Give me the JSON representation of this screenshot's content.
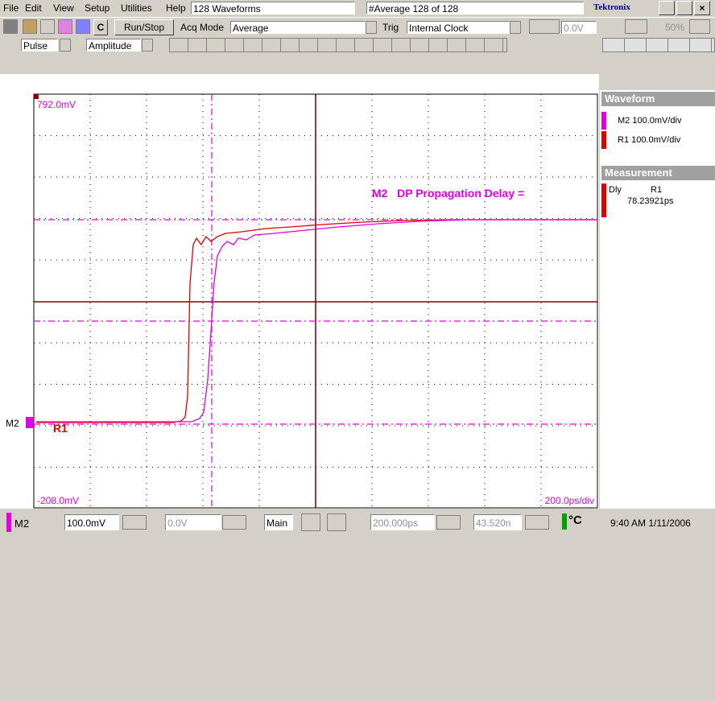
{
  "menu": [
    "File",
    "Edit",
    "View",
    "Setup",
    "Utilities",
    "Help"
  ],
  "title_fields": {
    "waveforms": "128 Waveforms",
    "average": "#Average 128 of 128",
    "brand": "Tektronix"
  },
  "toolbar": {
    "c": "C",
    "run_stop": "Run/Stop",
    "acq_mode_label": "Acq Mode",
    "acq_mode": "Average",
    "trig_label": "Trig",
    "trig": "Internal Clock",
    "trig_level": "0.0V",
    "percent": "50%"
  },
  "toolbar2": {
    "measure_type": "Pulse",
    "measure": "Amplitude"
  },
  "plot": {
    "top_label": "792.0mV",
    "bottom_label": "-208.0mV",
    "timebase": "200.0ps/div",
    "annotation": "M2   DP Propagation Delay =",
    "marker_m2": "M2",
    "marker_r1": "R1"
  },
  "panel": {
    "waveform_header": "Waveform",
    "waveforms": [
      "M2 100.0mV/div",
      "R1 100.0mV/div"
    ],
    "measurement_header": "Measurement",
    "measurement": {
      "name": "Dly",
      "source": "R1",
      "value": "78.23921ps"
    }
  },
  "statusbar": {
    "channel": "M2",
    "scale": "100.0mV",
    "offset": "0.0V",
    "view": "Main",
    "position": "200.000ps",
    "time2": "43.520n",
    "temp": "°C",
    "clock": "9:40 AM 1/11/2006"
  }
}
